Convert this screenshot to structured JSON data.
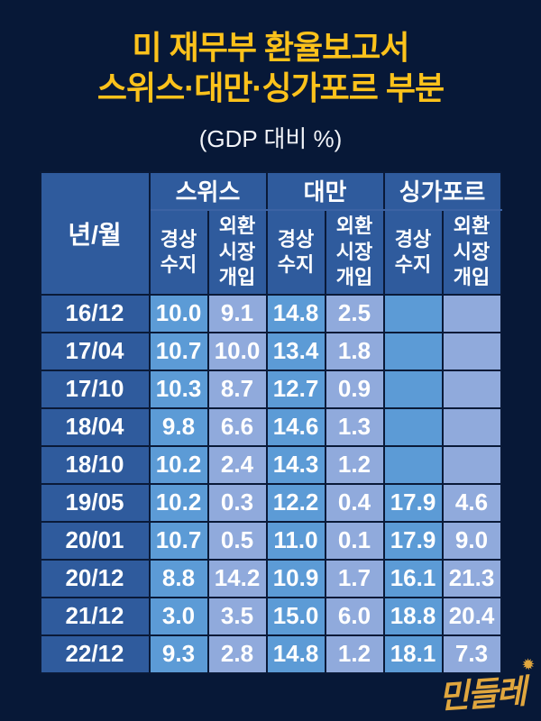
{
  "title": {
    "line1": "미 재무부 환율보고서",
    "line2": "스위스·대만·싱가포르 부분",
    "subtitle": "(GDP 대비 %)"
  },
  "table": {
    "corner_label": "년/월",
    "groups": [
      "스위스",
      "대만",
      "싱가포르"
    ],
    "sub_labels": [
      "경상\n수지",
      "외환\n시장\n개입",
      "경상\n수지",
      "외환\n시장\n개입",
      "경상\n수지",
      "외환\n시장\n개입"
    ],
    "rows": [
      {
        "label": "16/12",
        "values": [
          "10.0",
          "9.1",
          "14.8",
          "2.5",
          "",
          ""
        ]
      },
      {
        "label": "17/04",
        "values": [
          "10.7",
          "10.0",
          "13.4",
          "1.8",
          "",
          ""
        ]
      },
      {
        "label": "17/10",
        "values": [
          "10.3",
          "8.7",
          "12.7",
          "0.9",
          "",
          ""
        ]
      },
      {
        "label": "18/04",
        "values": [
          "9.8",
          "6.6",
          "14.6",
          "1.3",
          "",
          ""
        ]
      },
      {
        "label": "18/10",
        "values": [
          "10.2",
          "2.4",
          "14.3",
          "1.2",
          "",
          ""
        ]
      },
      {
        "label": "19/05",
        "values": [
          "10.2",
          "0.3",
          "12.2",
          "0.4",
          "17.9",
          "4.6"
        ]
      },
      {
        "label": "20/01",
        "values": [
          "10.7",
          "0.5",
          "11.0",
          "0.1",
          "17.9",
          "9.0"
        ]
      },
      {
        "label": "20/12",
        "values": [
          "8.8",
          "14.2",
          "10.9",
          "1.7",
          "16.1",
          "21.3"
        ]
      },
      {
        "label": "21/12",
        "values": [
          "3.0",
          "3.5",
          "15.0",
          "6.0",
          "18.8",
          "20.4"
        ]
      },
      {
        "label": "22/12",
        "values": [
          "9.3",
          "2.8",
          "14.8",
          "1.2",
          "18.1",
          "7.3"
        ]
      }
    ]
  },
  "logo": {
    "text": "민들레",
    "star_icon": "✹"
  },
  "colors": {
    "background": "#071837",
    "title_yellow": "#fcc21b",
    "header_blue": "#2f5b9d",
    "cell_blue": "#5c9bd6",
    "cell_light_blue": "#90aadc",
    "text_white": "#ffffff",
    "logo_gold": "#e0a63e"
  },
  "chart_data": {
    "type": "table",
    "title": "미 재무부 환율보고서 스위스·대만·싱가포르 부분",
    "subtitle": "(GDP 대비 %)",
    "unit": "% of GDP",
    "columns": [
      "년/월",
      "스위스 경상수지",
      "스위스 외환시장개입",
      "대만 경상수지",
      "대만 외환시장개입",
      "싱가포르 경상수지",
      "싱가포르 외환시장개입"
    ],
    "rows": [
      [
        "16/12",
        10.0,
        9.1,
        14.8,
        2.5,
        null,
        null
      ],
      [
        "17/04",
        10.7,
        10.0,
        13.4,
        1.8,
        null,
        null
      ],
      [
        "17/10",
        10.3,
        8.7,
        12.7,
        0.9,
        null,
        null
      ],
      [
        "18/04",
        9.8,
        6.6,
        14.6,
        1.3,
        null,
        null
      ],
      [
        "18/10",
        10.2,
        2.4,
        14.3,
        1.2,
        null,
        null
      ],
      [
        "19/05",
        10.2,
        0.3,
        12.2,
        0.4,
        17.9,
        4.6
      ],
      [
        "20/01",
        10.7,
        0.5,
        11.0,
        0.1,
        17.9,
        9.0
      ],
      [
        "20/12",
        8.8,
        14.2,
        10.9,
        1.7,
        16.1,
        21.3
      ],
      [
        "21/12",
        3.0,
        3.5,
        15.0,
        6.0,
        18.8,
        20.4
      ],
      [
        "22/12",
        9.3,
        2.8,
        14.8,
        1.2,
        18.1,
        7.3
      ]
    ]
  }
}
